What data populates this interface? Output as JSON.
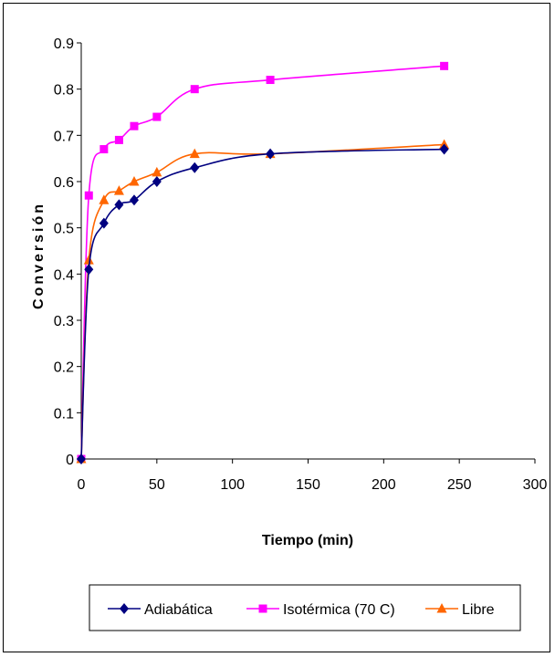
{
  "chart_data": {
    "type": "line",
    "title": "",
    "xlabel": "Tiempo (min)",
    "ylabel": "Conversión",
    "xlim": [
      0,
      300
    ],
    "ylim": [
      0,
      0.9
    ],
    "x_ticks": [
      "0",
      "50",
      "100",
      "150",
      "200",
      "250",
      "300"
    ],
    "y_ticks": [
      "0",
      "0.1",
      "0.2",
      "0.3",
      "0.4",
      "0.5",
      "0.6",
      "0.7",
      "0.8",
      "0.9"
    ],
    "grid": false,
    "legend_position": "bottom",
    "series": [
      {
        "name": "Adiabática",
        "color": "#000080",
        "marker": "diamond",
        "x": [
          0,
          5,
          15,
          25,
          35,
          50,
          75,
          125,
          240
        ],
        "y": [
          0.0,
          0.41,
          0.51,
          0.55,
          0.56,
          0.6,
          0.63,
          0.66,
          0.67
        ]
      },
      {
        "name": "Isotérmica (70 C)",
        "color": "#ff00ff",
        "marker": "square",
        "x": [
          0,
          5,
          15,
          25,
          35,
          50,
          75,
          125,
          240
        ],
        "y": [
          0.0,
          0.57,
          0.67,
          0.69,
          0.72,
          0.74,
          0.8,
          0.82,
          0.85
        ]
      },
      {
        "name": "Libre",
        "color": "#ff6600",
        "marker": "triangle",
        "x": [
          0,
          5,
          15,
          25,
          35,
          50,
          75,
          125,
          240
        ],
        "y": [
          0.0,
          0.43,
          0.56,
          0.58,
          0.6,
          0.62,
          0.66,
          0.66,
          0.68
        ]
      }
    ]
  }
}
